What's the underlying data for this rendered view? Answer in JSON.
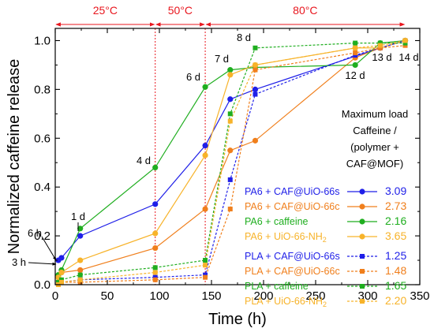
{
  "chart_data": {
    "type": "line",
    "xlabel": "Time (h)",
    "ylabel": "Normalized caffeine release",
    "xlim": [
      0,
      350
    ],
    "ylim": [
      0,
      1.05
    ],
    "xticks": [
      "0",
      "50",
      "100",
      "150",
      "200",
      "250",
      "300",
      "350"
    ],
    "yticks": [
      "0.0",
      "0.2",
      "0.4",
      "0.6",
      "0.8",
      "1.0"
    ],
    "grid": false,
    "temperature_zones": [
      {
        "label": "25°C",
        "x0": 0,
        "x1": 96
      },
      {
        "label": "50°C",
        "x0": 96,
        "x1": 144
      },
      {
        "label": "80°C",
        "x0": 144,
        "x1": 336
      }
    ],
    "time_annotations": [
      "3 h",
      "6 h",
      "1 d",
      "4 d",
      "6 d",
      "7 d",
      "8 d",
      "12 d",
      "13 d",
      "14 d"
    ],
    "legend_header": [
      "Maximum load",
      "Caffeine /",
      "(polymer +",
      "CAF@MOF)"
    ],
    "legend_values_header": "",
    "series": [
      {
        "name": "PA6 + CAF@UiO-66s",
        "color": "#1f1fe8",
        "marker": "circle",
        "dash": false,
        "max_load": "3.09",
        "x": [
          3,
          6,
          24,
          96,
          144,
          168,
          192,
          312,
          336
        ],
        "values": [
          0.1,
          0.11,
          0.2,
          0.33,
          0.57,
          0.76,
          0.8,
          0.97,
          1.0
        ]
      },
      {
        "name": "PA6 + CAF@UiO-66c",
        "color": "#f07f1c",
        "marker": "circle",
        "dash": false,
        "max_load": "2.73",
        "x": [
          3,
          6,
          24,
          96,
          144,
          168,
          192,
          288,
          312,
          336
        ],
        "values": [
          0.03,
          0.05,
          0.06,
          0.15,
          0.31,
          0.55,
          0.59,
          0.93,
          0.97,
          1.0
        ]
      },
      {
        "name": "PA6 + caffeine",
        "color": "#1fae1f",
        "marker": "circle",
        "dash": false,
        "max_load": "2.16",
        "x": [
          3,
          6,
          24,
          96,
          144,
          168,
          192,
          288,
          312,
          336
        ],
        "values": [
          0.04,
          0.06,
          0.23,
          0.48,
          0.81,
          0.88,
          0.89,
          0.9,
          0.99,
          1.0
        ]
      },
      {
        "name": "PA6 + UiO-66-NH2",
        "color": "#f7b32a",
        "marker": "circle",
        "dash": false,
        "max_load": "3.65",
        "x": [
          3,
          6,
          24,
          96,
          144,
          168,
          192,
          288,
          312,
          336
        ],
        "values": [
          0.03,
          0.05,
          0.1,
          0.21,
          0.53,
          0.86,
          0.9,
          0.97,
          0.97,
          1.0
        ]
      },
      {
        "name": "PLA + CAF@UiO-66s",
        "color": "#1f1fe8",
        "marker": "square",
        "dash": true,
        "max_load": "1.25",
        "x": [
          3,
          6,
          24,
          96,
          144,
          168,
          192,
          288,
          312,
          336
        ],
        "values": [
          0.0,
          0.01,
          0.02,
          0.03,
          0.04,
          0.43,
          0.78,
          0.94,
          0.97,
          1.0
        ]
      },
      {
        "name": "PLA + CAF@UiO-66c",
        "color": "#f07f1c",
        "marker": "square",
        "dash": true,
        "max_load": "1.48",
        "x": [
          3,
          6,
          24,
          96,
          144,
          168,
          192,
          288,
          312,
          336
        ],
        "values": [
          0.0,
          0.01,
          0.01,
          0.02,
          0.03,
          0.31,
          0.88,
          0.95,
          0.97,
          0.98
        ]
      },
      {
        "name": "PLA + caffeine",
        "color": "#1fae1f",
        "marker": "square",
        "dash": true,
        "max_load": "1.65",
        "x": [
          3,
          6,
          24,
          96,
          144,
          168,
          192,
          288,
          312,
          336
        ],
        "values": [
          0.01,
          0.02,
          0.04,
          0.07,
          0.1,
          0.7,
          0.97,
          0.99,
          0.99,
          0.99
        ]
      },
      {
        "name": "PLA + UiO-66-NH2",
        "color": "#f7b32a",
        "marker": "square",
        "dash": true,
        "max_load": "2.20",
        "x": [
          3,
          6,
          24,
          96,
          144,
          168,
          192,
          288,
          312,
          336
        ],
        "values": [
          0.0,
          0.01,
          0.02,
          0.05,
          0.08,
          0.67,
          0.9,
          0.97,
          0.98,
          1.0
        ]
      }
    ]
  }
}
